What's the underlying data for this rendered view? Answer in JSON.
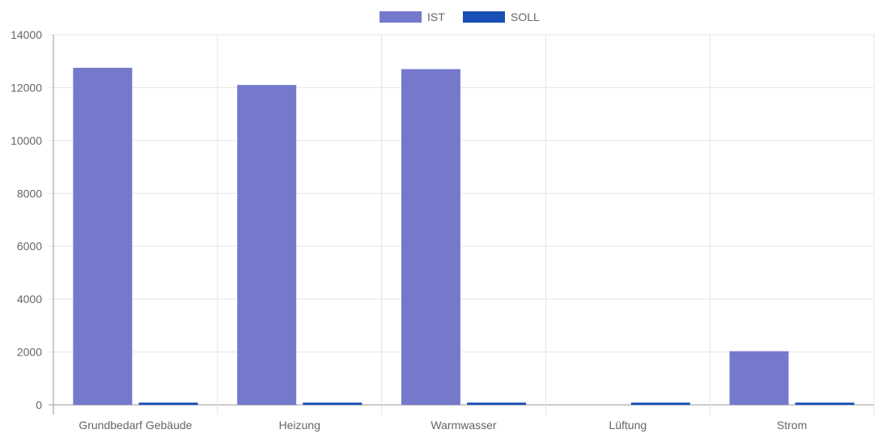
{
  "chart_data": {
    "type": "bar",
    "categories": [
      "Grundbedarf Gebäude",
      "Heizung",
      "Warmwasser",
      "Lüftung",
      "Strom"
    ],
    "series": [
      {
        "name": "IST",
        "values": [
          12750,
          12100,
          12700,
          0,
          2030
        ],
        "color": "#7579cc"
      },
      {
        "name": "SOLL",
        "values": [
          85,
          85,
          85,
          85,
          85
        ],
        "color": "#1a4fb5"
      }
    ],
    "ylim": [
      0,
      14000
    ],
    "yticks": [
      0,
      2000,
      4000,
      6000,
      8000,
      10000,
      12000,
      14000
    ],
    "grid": true,
    "legend_position": "top-center",
    "colors": {
      "grid": "#e5e5e5",
      "axis": "#999999",
      "text": "#666666"
    }
  }
}
